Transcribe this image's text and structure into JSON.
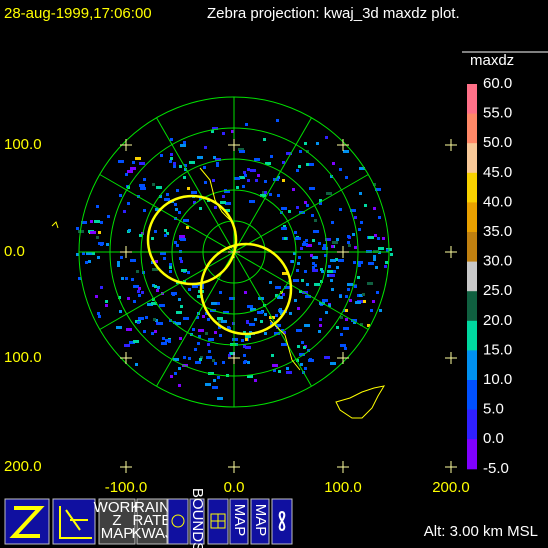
{
  "header": {
    "timestamp": "28-aug-1999,17:06:00",
    "title": "Zebra projection: kwaj_3d maxdz plot."
  },
  "plot": {
    "x_labels": [
      "-100.0",
      "0.0",
      "100.0",
      "200.0"
    ],
    "y_labels": [
      "100.0",
      "0.0",
      "100.0",
      "200.0"
    ]
  },
  "colorbar": {
    "title": "maxdz",
    "labels": [
      "60.0",
      "55.0",
      "50.0",
      "45.0",
      "40.0",
      "35.0",
      "30.0",
      "25.0",
      "20.0",
      "15.0",
      "10.0",
      "5.0",
      "0.0",
      "-5.0"
    ],
    "colors": [
      "#ff7088",
      "#ff8868",
      "#f8c898",
      "#f8d000",
      "#e8a000",
      "#c08010",
      "#c8c8c8",
      "#106040",
      "#00d8a0",
      "#0090f0",
      "#0050ff",
      "#3020ff",
      "#8000ff"
    ]
  },
  "toolbar": {
    "buttons": [
      [
        "WORK",
        "Z",
        "MAP"
      ],
      [
        "RAIN",
        "RATE",
        "KWAJ"
      ],
      [
        "BOUNDS"
      ],
      [
        "MAP"
      ],
      [
        "MAP"
      ]
    ]
  },
  "status": {
    "altitude": "Alt: 3.00 km MSL"
  }
}
